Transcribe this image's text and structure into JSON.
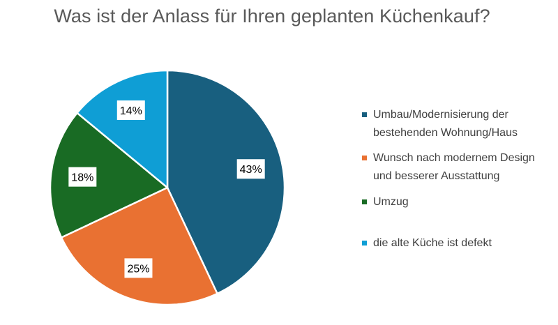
{
  "chart_data": {
    "type": "pie",
    "title": "Was ist der Anlass für Ihren geplanten Küchenkauf?",
    "categories": [
      "Umbau/Modernisierung der bestehenden Wohnung/Haus",
      "Wunsch nach modernem Design und besserer Ausstattung",
      "Umzug",
      "die alte Küche ist defekt"
    ],
    "values": [
      43,
      25,
      18,
      14
    ],
    "data_labels": [
      "43%",
      "25%",
      "18%",
      "14%"
    ],
    "colors": [
      "#185f7f",
      "#e97132",
      "#196b24",
      "#0f9ed5"
    ],
    "legend_position": "right",
    "legend": [
      {
        "lines": [
          "Umbau/Modernisierung der",
          "bestehenden Wohnung/Haus"
        ],
        "color": "#185f7f"
      },
      {
        "lines": [
          "Wunsch nach modernem Design",
          "und besserer Ausstattung"
        ],
        "color": "#e97132"
      },
      {
        "lines": [
          "Umzug"
        ],
        "color": "#196b24"
      },
      {
        "lines": [
          "die alte Küche ist defekt"
        ],
        "color": "#0f9ed5"
      }
    ]
  }
}
